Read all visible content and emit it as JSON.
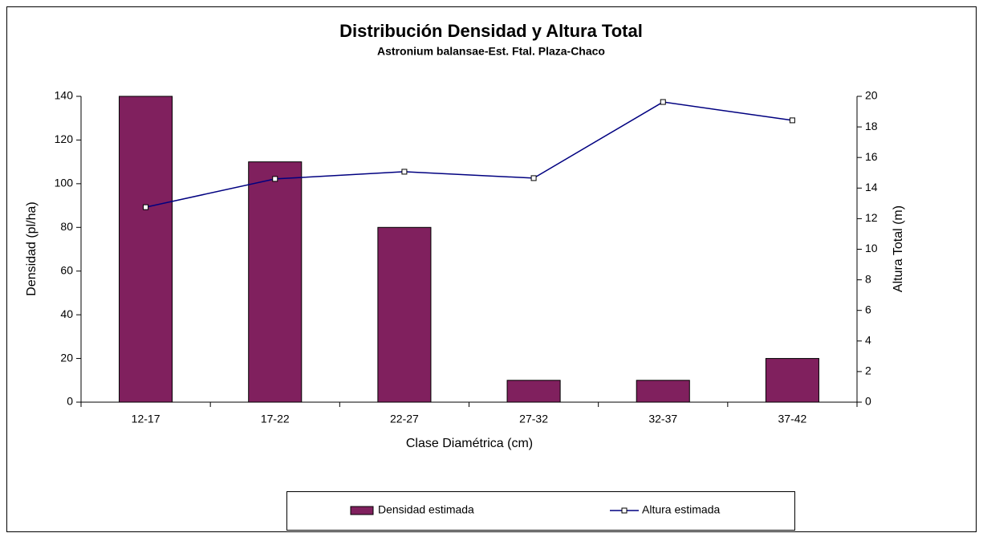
{
  "chart_data": {
    "type": "bar_line",
    "title": "Distribución Densidad y Altura Total",
    "subtitle": "Astronium balansae-Est. Ftal. Plaza-Chaco",
    "x_label": "Clase Diamétrica (cm)",
    "y_label": "Densidad (pl/ha)",
    "y2_label": "Altura Total (m)",
    "categories": [
      "12-17",
      "17-22",
      "22-27",
      "27-32",
      "32-37",
      "37-42"
    ],
    "series": [
      {
        "name": "Densidad estimada",
        "type": "bar",
        "color": "#80205e",
        "values": [
          140,
          110,
          80,
          10,
          10,
          20
        ]
      },
      {
        "name": "Altura estimada",
        "type": "line",
        "axis": "y2",
        "color": "#000080",
        "values": [
          12.75,
          14.6,
          15.07,
          14.65,
          19.63,
          18.43
        ]
      }
    ],
    "ylim": [
      0,
      140
    ],
    "yticks": [
      0,
      20,
      40,
      60,
      80,
      100,
      120,
      140
    ],
    "y2lim": [
      0,
      20
    ],
    "y2ticks": [
      0,
      2,
      4,
      6,
      8,
      10,
      12,
      14,
      16,
      18,
      20
    ],
    "grid": false,
    "legend": "bottom"
  }
}
